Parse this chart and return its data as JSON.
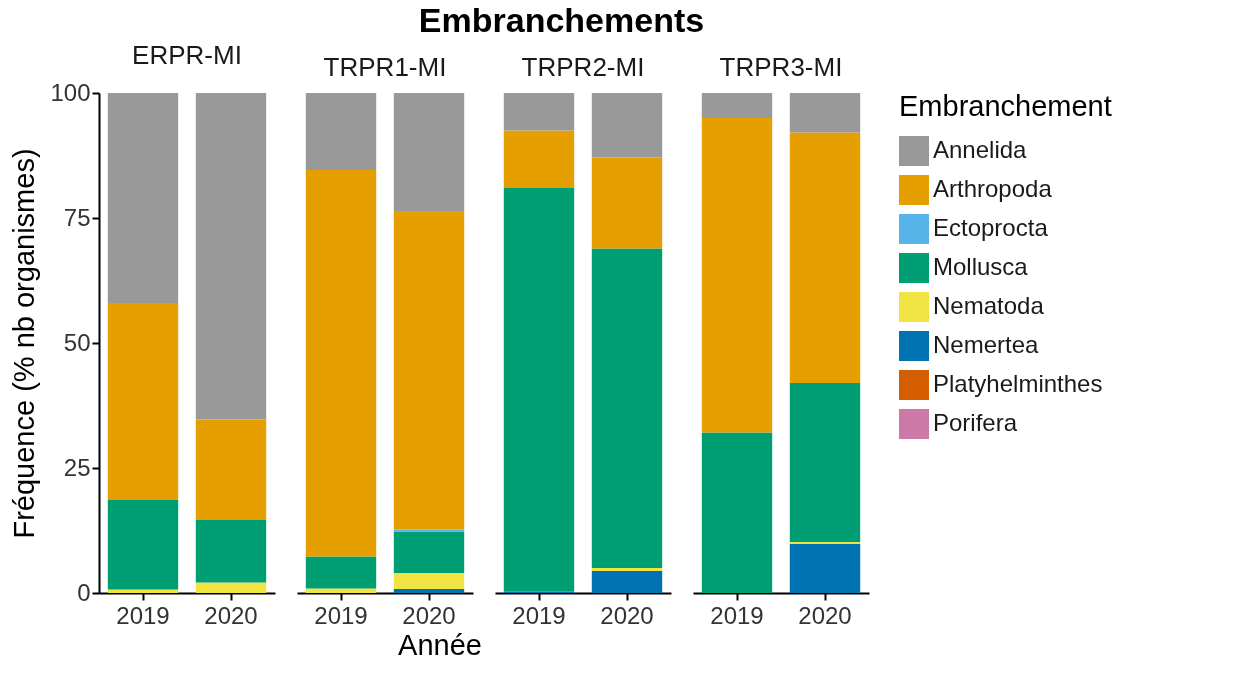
{
  "chart_data": [
    {
      "type": "bar",
      "subtitle": "ERPR-MI",
      "xlabel": "Année",
      "ylabel": "Fréquence (% nb organismes)",
      "legend_title": "Embranchement",
      "legend": "right",
      "stacked": true,
      "categories": [
        "2019",
        "2020"
      ],
      "ylim": [
        0,
        100
      ],
      "yticks": [
        0,
        25,
        50,
        75,
        100
      ],
      "series": [
        {
          "name": "Porifera",
          "color": "#cc79a7",
          "values": [
            0,
            0
          ]
        },
        {
          "name": "Platyhelminthes",
          "color": "#d55e00",
          "values": [
            0,
            0
          ]
        },
        {
          "name": "Nemertea",
          "color": "#0072b2",
          "values": [
            0,
            0
          ]
        },
        {
          "name": "Nematoda",
          "color": "#f0e442",
          "values": [
            0.7,
            2.1
          ]
        },
        {
          "name": "Mollusca",
          "color": "#009e73",
          "values": [
            17.9,
            12.5
          ]
        },
        {
          "name": "Ectoprocta",
          "color": "#56b4e9",
          "values": [
            0,
            0
          ]
        },
        {
          "name": "Arthropoda",
          "color": "#e69f00",
          "values": [
            39.4,
            20.1
          ]
        },
        {
          "name": "Annelida",
          "color": "#999999",
          "values": [
            42.0,
            65.3
          ]
        }
      ]
    },
    {
      "type": "bar",
      "title": "Embranchements",
      "subtitle": "TRPR1-MI",
      "stacked": true,
      "tick_labels": "x",
      "categories": [
        "2019",
        "2020"
      ],
      "ylim": [
        0,
        100
      ],
      "series": [
        {
          "color": "#cc79a7",
          "values": [
            0,
            0
          ]
        },
        {
          "color": "#d55e00",
          "values": [
            0,
            0
          ]
        },
        {
          "color": "#0072b2",
          "values": [
            0,
            0.8
          ]
        },
        {
          "color": "#f0e442",
          "values": [
            0.9,
            3.2
          ]
        },
        {
          "color": "#009e73",
          "values": [
            6.4,
            8.3
          ]
        },
        {
          "color": "#56b4e9",
          "values": [
            0,
            0.4
          ]
        },
        {
          "color": "#e69f00",
          "values": [
            77.3,
            63.7
          ]
        },
        {
          "color": "#999999",
          "values": [
            15.4,
            23.6
          ]
        }
      ]
    },
    {
      "type": "bar",
      "subtitle": "TRPR2-MI",
      "stacked": true,
      "tick_labels": "x",
      "categories": [
        "2019",
        "2020"
      ],
      "ylim": [
        0,
        100
      ],
      "series": [
        {
          "color": "#cc79a7",
          "values": [
            0,
            0
          ]
        },
        {
          "color": "#d55e00",
          "values": [
            0,
            0
          ]
        },
        {
          "color": "#0072b2",
          "values": [
            0.3,
            4.4
          ]
        },
        {
          "color": "#f0e442",
          "values": [
            0,
            0.6
          ]
        },
        {
          "color": "#009e73",
          "values": [
            80.7,
            63.9
          ]
        },
        {
          "color": "#56b4e9",
          "values": [
            0,
            0
          ]
        },
        {
          "color": "#e69f00",
          "values": [
            11.5,
            18.2
          ]
        },
        {
          "color": "#999999",
          "values": [
            7.5,
            12.9
          ]
        }
      ]
    },
    {
      "type": "bar",
      "subtitle": "TRPR3-MI",
      "stacked": true,
      "tick_labels": "x",
      "categories": [
        "2019",
        "2020"
      ],
      "ylim": [
        0,
        100
      ],
      "series": [
        {
          "color": "#cc79a7",
          "values": [
            0,
            0
          ]
        },
        {
          "color": "#d55e00",
          "values": [
            0,
            0
          ]
        },
        {
          "color": "#0072b2",
          "values": [
            0,
            9.8
          ]
        },
        {
          "color": "#f0e442",
          "values": [
            0,
            0.4
          ]
        },
        {
          "color": "#009e73",
          "values": [
            32.1,
            31.8
          ]
        },
        {
          "color": "#56b4e9",
          "values": [
            0,
            0
          ]
        },
        {
          "color": "#e69f00",
          "values": [
            62.9,
            50.1
          ]
        },
        {
          "color": "#999999",
          "values": [
            5.0,
            7.9
          ]
        }
      ]
    }
  ]
}
